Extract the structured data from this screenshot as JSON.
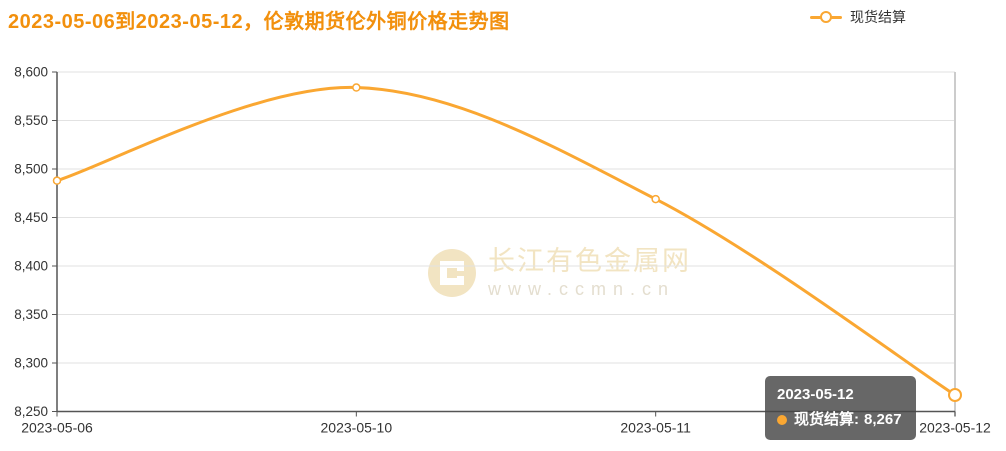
{
  "header": {
    "title": "2023-05-06到2023-05-12，伦敦期货伦外铜价格走势图"
  },
  "legend": {
    "label": "现货结算"
  },
  "watermark": {
    "site_name": "长江有色金属网",
    "site_url": "www.ccmn.cn"
  },
  "tooltip": {
    "date": "2023-05-12",
    "series_label": "现货结算:",
    "value": "8,267"
  },
  "colors": {
    "title": "#F2900D",
    "line": "#FAA732",
    "axis": "#555555",
    "axis_text": "#333333",
    "grid": "#E2E2E2",
    "pointer": "#CCCCCC",
    "tooltip_bg": "rgba(70,70,70,0.82)",
    "tooltip_text": "#FFFFFF",
    "watermark": "#F2E4C2",
    "watermark_url": "#E4DECF",
    "background": "#FFFFFF"
  },
  "chart_data": {
    "type": "line",
    "title": "2023-05-06到2023-05-12，伦敦期货伦外铜价格走势图",
    "categories": [
      "2023-05-06",
      "2023-05-10",
      "2023-05-11",
      "2023-05-12"
    ],
    "series": [
      {
        "name": "现货结算",
        "values": [
          8488,
          8584,
          8469,
          8267
        ]
      }
    ],
    "ylim": [
      8250,
      8600
    ],
    "ytick_step": 50,
    "ytick_labels": [
      "8,250",
      "8,300",
      "8,350",
      "8,400",
      "8,450",
      "8,500",
      "8,550",
      "8,600"
    ],
    "xlabel": "",
    "ylabel": "",
    "grid": true,
    "smooth": true,
    "legend_position": "top-right",
    "highlighted_point": {
      "category": "2023-05-12",
      "value": 8267
    }
  }
}
